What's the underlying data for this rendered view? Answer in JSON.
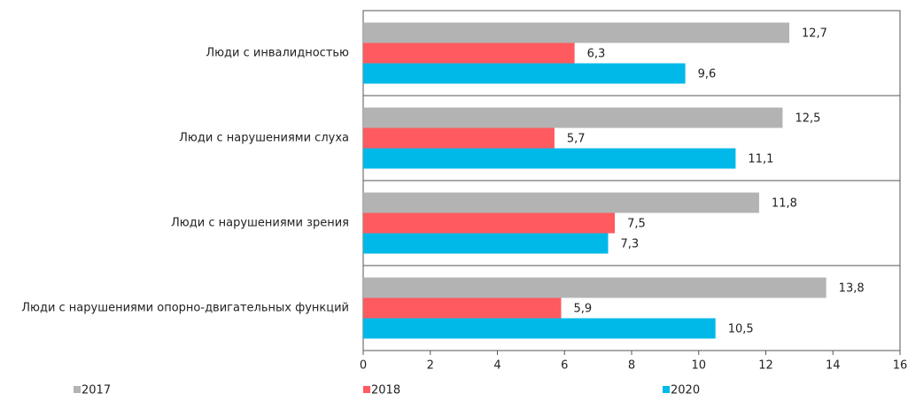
{
  "chart_data": {
    "type": "barh",
    "categories": [
      "Люди с инвалидностью",
      "Люди с нарушениями слуха",
      "Люди с нарушениями зрения",
      "Люди с нарушениями опорно-двигательных функций"
    ],
    "series": [
      {
        "name": "2017",
        "color": "#b3b3b3",
        "values": [
          12.7,
          12.5,
          11.8,
          13.8
        ],
        "value_labels": [
          "12,7",
          "12,5",
          "11,8",
          "13,8"
        ]
      },
      {
        "name": "2018",
        "color": "#ff5a5f",
        "values": [
          6.3,
          5.7,
          7.5,
          5.9
        ],
        "value_labels": [
          "6,3",
          "5,7",
          "7,5",
          "5,9"
        ]
      },
      {
        "name": "2020",
        "color": "#00b9e8",
        "values": [
          9.6,
          11.1,
          7.3,
          10.5
        ],
        "value_labels": [
          "9,6",
          "11,1",
          "7,3",
          "10,5"
        ]
      }
    ],
    "xlim": [
      0,
      16
    ],
    "xticks": [
      0,
      2,
      4,
      6,
      8,
      10,
      12,
      14,
      16
    ],
    "legend": "bottom"
  }
}
